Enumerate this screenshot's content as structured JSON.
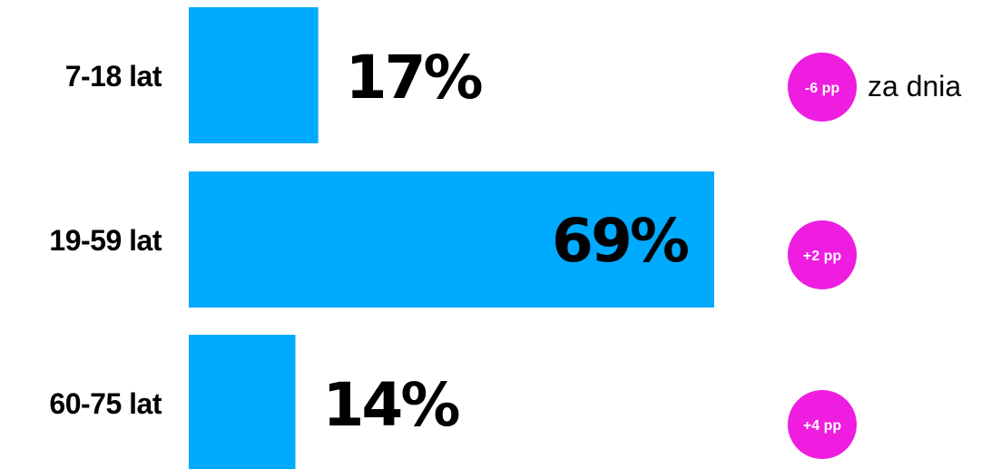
{
  "chart_data": {
    "type": "bar",
    "orientation": "horizontal",
    "categories": [
      "7-18 lat",
      "19-59 lat",
      "60-75 lat"
    ],
    "values": [
      17,
      69,
      14
    ],
    "value_labels": [
      "17%",
      "69%",
      "14%"
    ],
    "unit": "%",
    "xlim": [
      0,
      100
    ],
    "grid": false,
    "legend": "none",
    "changes": [
      "-6 pp",
      "+2 pp",
      "+4 pp"
    ],
    "change_note": "za dnia",
    "colors": {
      "bar": "#00aaff",
      "badge": "#ee1de0",
      "text": "#000000",
      "badge_text": "#ffffff"
    }
  }
}
